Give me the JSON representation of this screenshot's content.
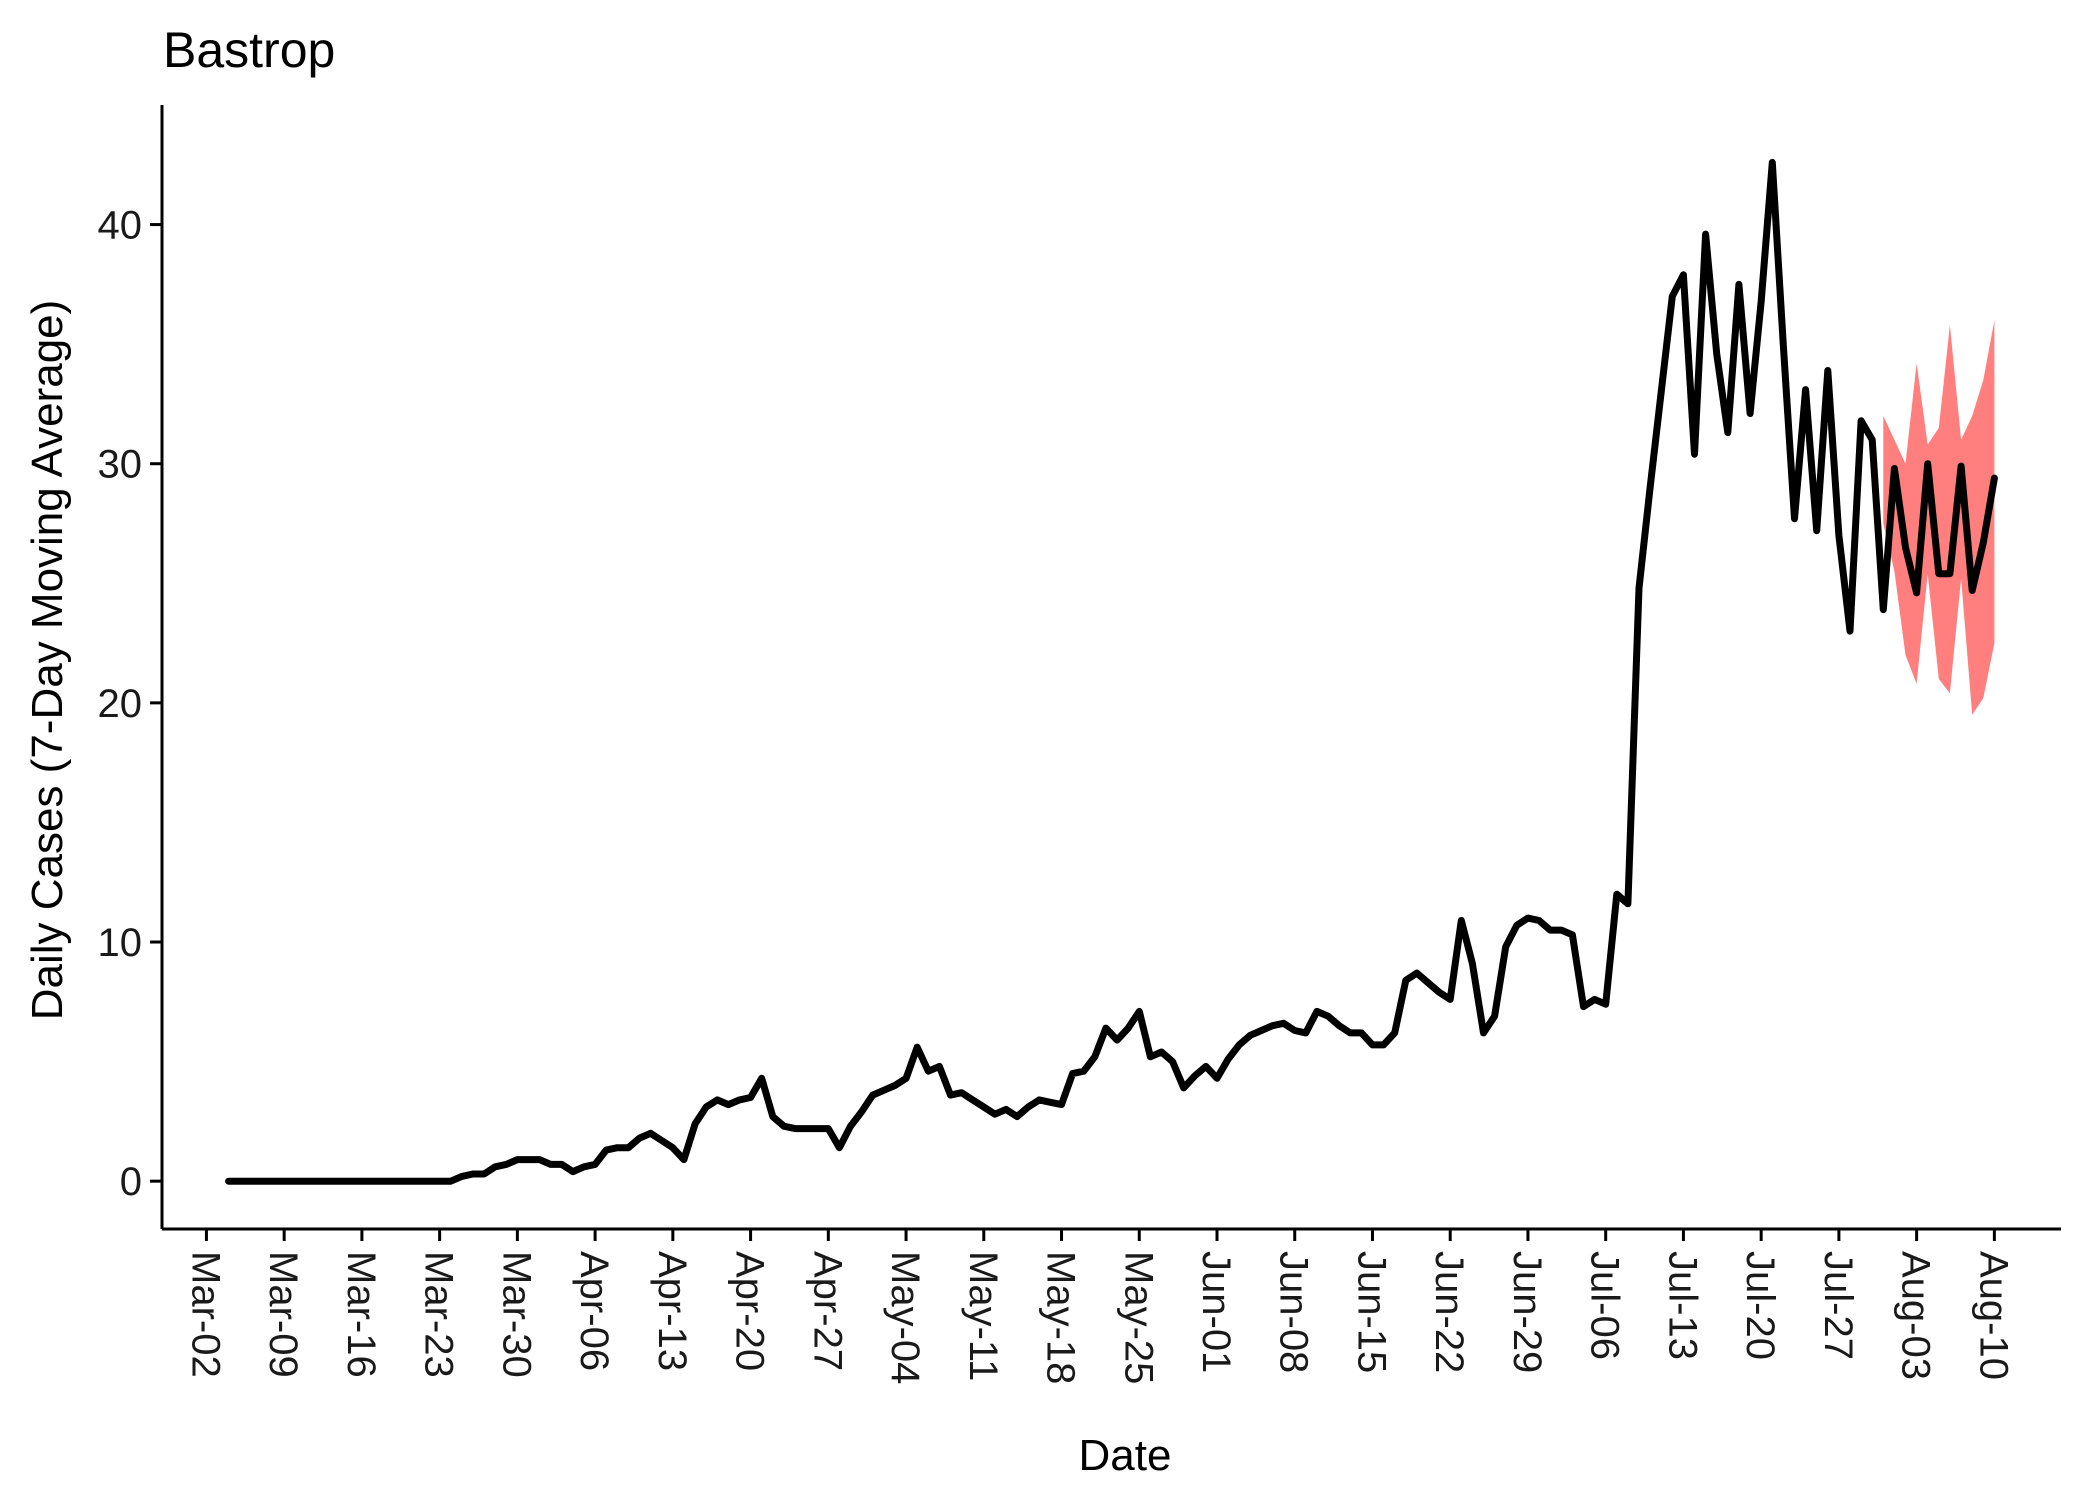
{
  "chart_data": {
    "type": "line",
    "title": "Bastrop",
    "xlabel": "Date",
    "ylabel": "Daily Cases (7-Day Moving Average)",
    "x_tick_labels": [
      "Mar-02",
      "Mar-09",
      "Mar-16",
      "Mar-23",
      "Mar-30",
      "Apr-06",
      "Apr-13",
      "Apr-20",
      "Apr-27",
      "May-04",
      "May-11",
      "May-18",
      "May-25",
      "Jun-01",
      "Jun-08",
      "Jun-15",
      "Jun-22",
      "Jun-29",
      "Jul-06",
      "Jul-13",
      "Jul-20",
      "Jul-27",
      "Aug-03",
      "Aug-10"
    ],
    "y_ticks": [
      0,
      10,
      20,
      30,
      40
    ],
    "ylim": [
      -2,
      45
    ],
    "xlim": [
      "2020-02-27",
      "2020-08-16"
    ],
    "start_date": "2020-03-04",
    "values": [
      0,
      0,
      0,
      0,
      0,
      0,
      0,
      0,
      0,
      0,
      0,
      0,
      0,
      0,
      0,
      0,
      0,
      0,
      0,
      0,
      0,
      0.2,
      0.3,
      0.3,
      0.6,
      0.7,
      0.9,
      0.9,
      0.9,
      0.7,
      0.7,
      0.4,
      0.6,
      0.7,
      1.3,
      1.4,
      1.4,
      1.8,
      2.0,
      1.7,
      1.4,
      0.9,
      2.4,
      3.1,
      3.4,
      3.2,
      3.4,
      3.5,
      4.3,
      2.7,
      2.3,
      2.2,
      2.2,
      2.2,
      2.2,
      1.4,
      2.3,
      2.9,
      3.6,
      3.8,
      4.0,
      4.3,
      5.6,
      4.6,
      4.8,
      3.6,
      3.7,
      3.4,
      3.1,
      2.8,
      3.0,
      2.7,
      3.1,
      3.4,
      3.3,
      3.2,
      4.5,
      4.6,
      5.2,
      6.4,
      5.9,
      6.4,
      7.1,
      5.2,
      5.4,
      5.0,
      3.9,
      4.4,
      4.8,
      4.3,
      5.1,
      5.7,
      6.1,
      6.3,
      6.5,
      6.6,
      6.3,
      6.2,
      7.1,
      6.9,
      6.5,
      6.2,
      6.2,
      5.7,
      5.7,
      6.2,
      8.4,
      8.7,
      8.3,
      7.9,
      7.6,
      10.9,
      9.1,
      6.2,
      6.9,
      9.8,
      10.7,
      11.0,
      10.9,
      10.5,
      10.5,
      10.3,
      7.3,
      7.6,
      7.4,
      12.0,
      11.6,
      24.8,
      29.0,
      33.0,
      37.0,
      37.9,
      30.4,
      39.6,
      34.6,
      31.3,
      37.5,
      32.1,
      36.8,
      42.6,
      34.9,
      27.7,
      33.1,
      27.2,
      33.9,
      27.0,
      23.0,
      31.8,
      31.0,
      23.9,
      29.8,
      26.5,
      24.6,
      30.0,
      25.4,
      25.4,
      29.9,
      24.7,
      26.7,
      29.4
    ],
    "band_start_date": "2020-07-31",
    "band_lower": [
      27.5,
      25.5,
      22.0,
      20.8,
      25.4,
      21.0,
      20.4,
      25.2,
      19.5,
      20.2,
      22.5
    ],
    "band_upper": [
      32.0,
      31.0,
      30.0,
      34.2,
      30.8,
      31.5,
      35.8,
      31.0,
      32.0,
      33.5,
      36.0
    ],
    "colors": {
      "line": "#000000",
      "band": "#ff7f7f"
    }
  }
}
